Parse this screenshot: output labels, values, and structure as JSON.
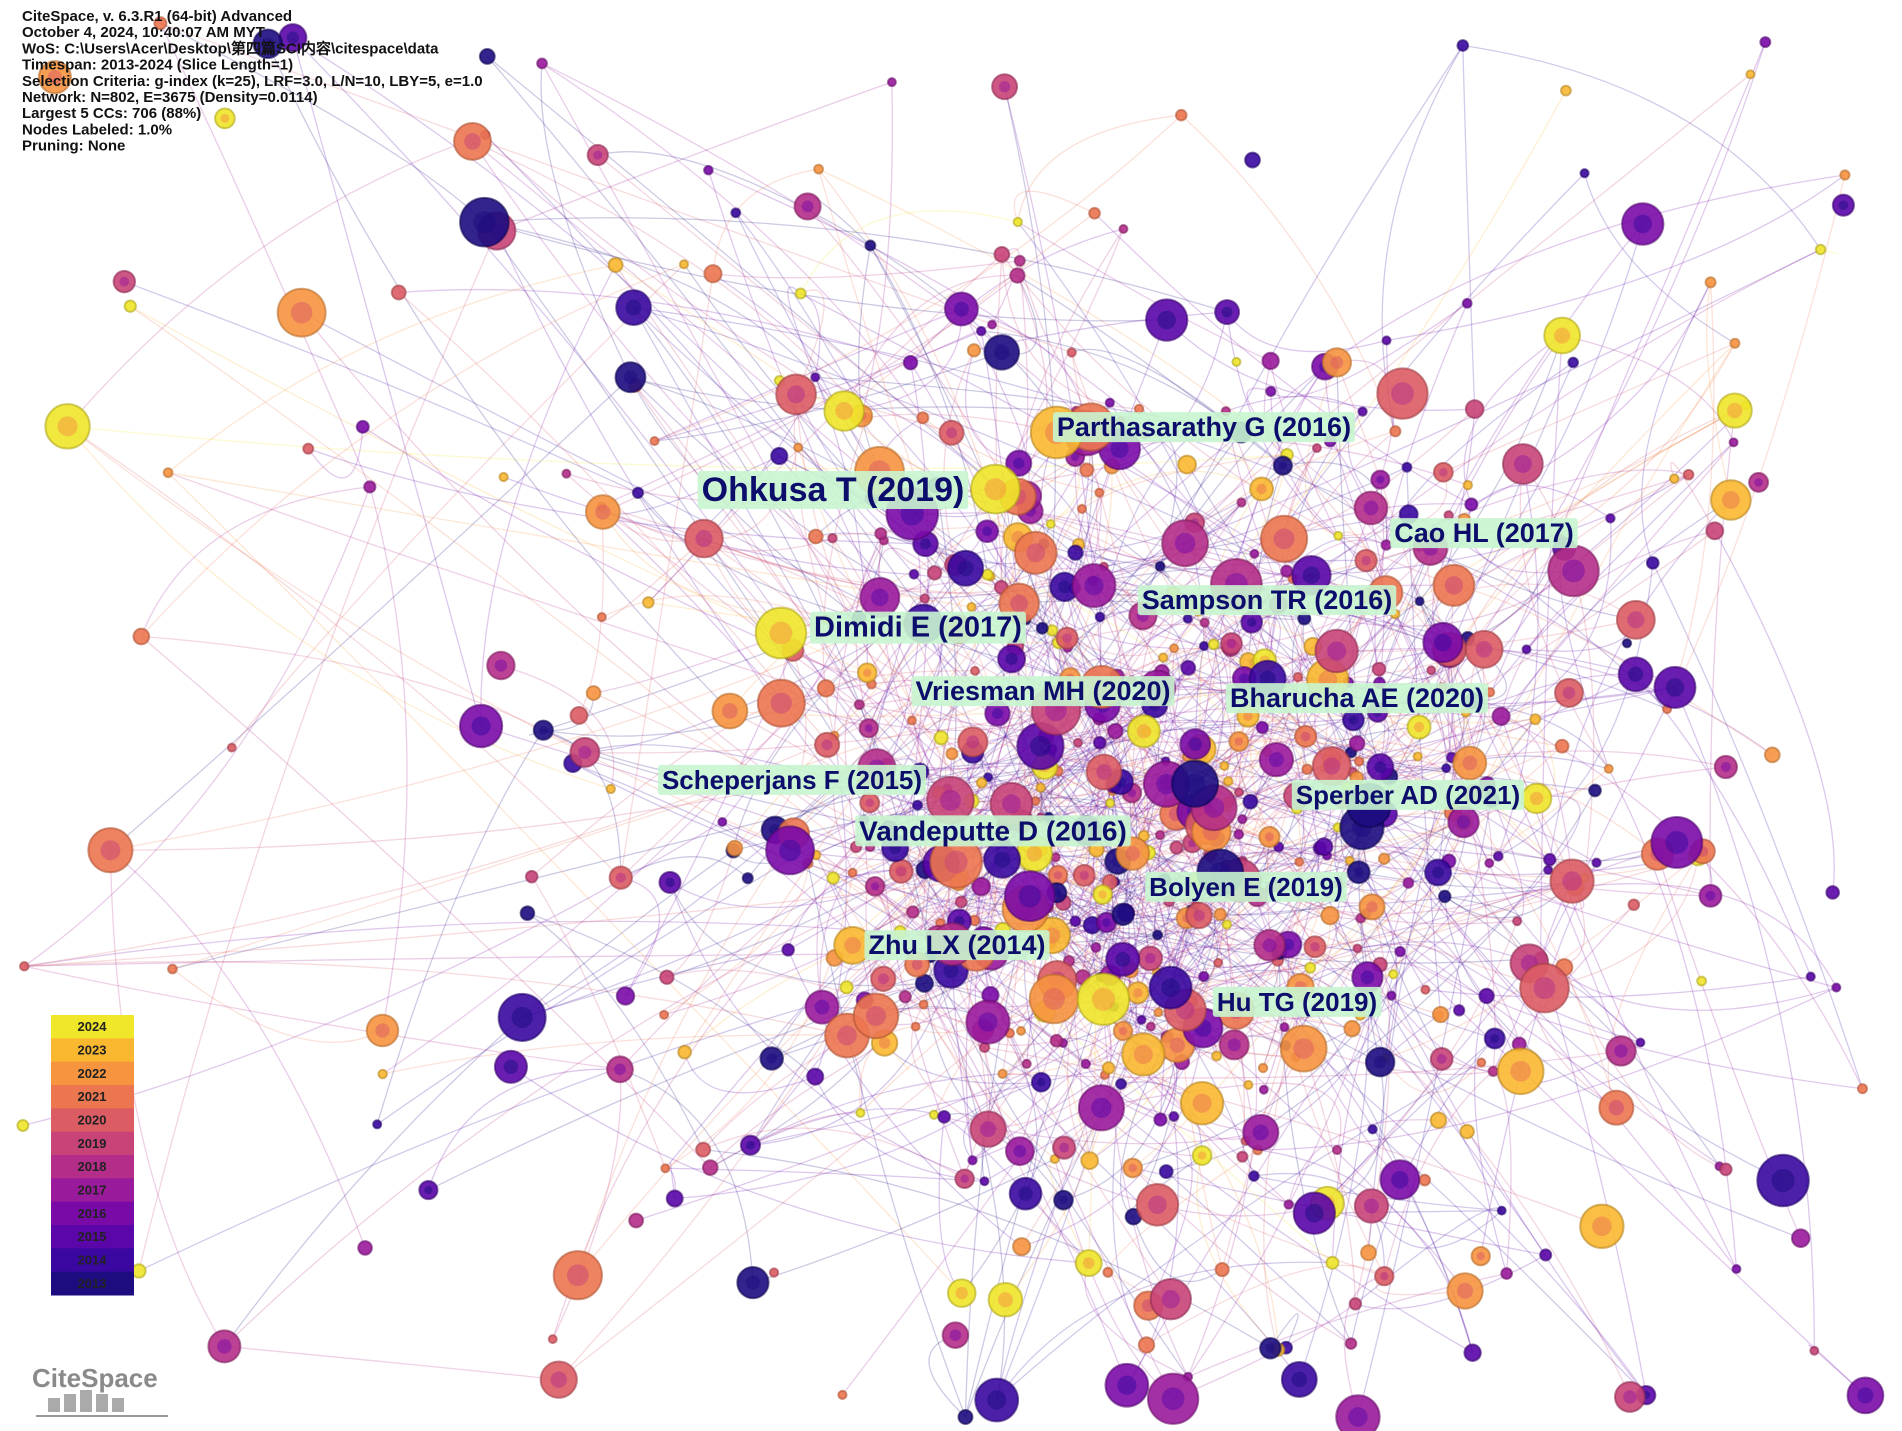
{
  "header": {
    "lines": [
      "CiteSpace, v. 6.3.R1 (64-bit) Advanced",
      "October 4, 2024, 10:40:07 AM MYT",
      "WoS: C:\\Users\\Acer\\Desktop\\第四篇SCI内容\\citespace\\data",
      "Timespan: 2013-2024 (Slice Length=1)",
      "Selection Criteria: g-index (k=25), LRF=3.0, L/N=10, LBY=5, e=1.0",
      "Network: N=802, E=3675 (Density=0.0114)",
      "Largest 5 CCs: 706 (88%)",
      "Nodes Labeled: 1.0%",
      "Pruning: None"
    ]
  },
  "labels": [
    {
      "text": "Parthasarathy G (2016)"
    },
    {
      "text": "Ohkusa T (2019)"
    },
    {
      "text": "Cao HL (2017)"
    },
    {
      "text": "Sampson TR (2016)"
    },
    {
      "text": "Dimidi E (2017)"
    },
    {
      "text": "Vriesman MH (2020)"
    },
    {
      "text": "Bharucha AE (2020)"
    },
    {
      "text": "Scheperjans F (2015)"
    },
    {
      "text": "Sperber AD (2021)"
    },
    {
      "text": "Vandeputte D (2016)"
    },
    {
      "text": "Bolyen E (2019)"
    },
    {
      "text": "Zhu LX (2014)"
    },
    {
      "text": "Hu TG (2019)"
    }
  ],
  "legend": {
    "years": [
      2024,
      2023,
      2022,
      2021,
      2020,
      2019,
      2018,
      2017,
      2016,
      2015,
      2014,
      2013
    ]
  },
  "logo": "CiteSpace"
}
